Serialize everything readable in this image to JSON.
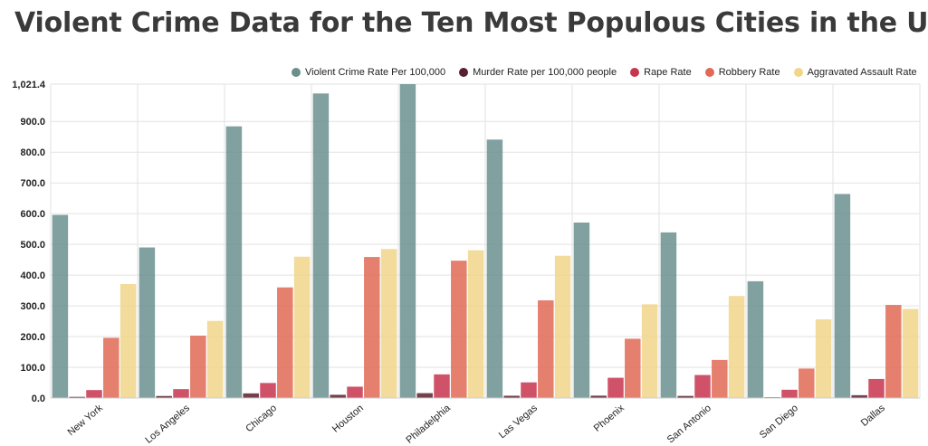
{
  "page_title": "Violent Crime Data for the Ten Most Populous Cities in the U.S.",
  "colors": {
    "violent": "#6b8f8f",
    "murder": "#5a1f2e",
    "rape": "#c8344e",
    "robbery": "#e06a55",
    "assault": "#f0d58a",
    "grid": "#e2e2e2",
    "axis_text": "#222222"
  },
  "chart_data": {
    "type": "bar",
    "title": "Violent Crime Data for the Ten Most Populous Cities in the U.S.",
    "xlabel": "",
    "ylabel": "",
    "ylim": [
      0,
      1021.4
    ],
    "yticks": [
      "0.0",
      "100.0",
      "200.0",
      "300.0",
      "400.0",
      "500.0",
      "600.0",
      "700.0",
      "800.0",
      "900.0",
      "1,021.4"
    ],
    "ytick_values": [
      0,
      100,
      200,
      300,
      400,
      500,
      600,
      700,
      800,
      900,
      1021.4
    ],
    "grid": true,
    "legend_position": "top-right",
    "categories": [
      "New York",
      "Los Angeles",
      "Chicago",
      "Houston",
      "Philadelphia",
      "Las Vegas",
      "Phoenix",
      "San Antonio",
      "San Diego",
      "Dallas"
    ],
    "series": [
      {
        "name": "Violent Crime Rate Per 100,000",
        "color_key": "violent",
        "values": [
          596,
          490,
          884,
          991,
          1021.4,
          841,
          571,
          539,
          380,
          664
        ]
      },
      {
        "name": "Murder Rate per 100,000 people",
        "color_key": "murder",
        "values": [
          3.9,
          6.7,
          15.2,
          10.6,
          15.9,
          7.5,
          7.8,
          6.9,
          2.6,
          9.3
        ]
      },
      {
        "name": "Rape Rate",
        "color_key": "rape",
        "values": [
          26,
          29,
          49,
          37,
          77,
          51,
          66,
          75,
          27,
          62
        ]
      },
      {
        "name": "Robbery Rate",
        "color_key": "robbery",
        "values": [
          196,
          203,
          360,
          459,
          447,
          318,
          193,
          124,
          96,
          303
        ]
      },
      {
        "name": "Aggravated Assault Rate",
        "color_key": "assault",
        "values": [
          371,
          251,
          460,
          485,
          481,
          463,
          305,
          332,
          256,
          290
        ]
      }
    ]
  }
}
